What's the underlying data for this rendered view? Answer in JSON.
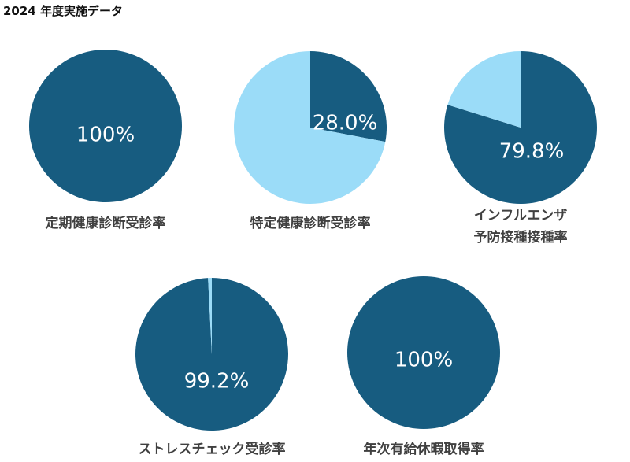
{
  "page_title": "2024 年度実施データ",
  "colors": {
    "achieved": "#175c80",
    "remaining": "#9bdcf8"
  },
  "chart_data": [
    {
      "type": "pie",
      "title": [
        "定期健康診断受診率"
      ],
      "value_label": "100%",
      "values": [
        100,
        0
      ]
    },
    {
      "type": "pie",
      "title": [
        "特定健康診断受診率"
      ],
      "value_label": "28.0%",
      "values": [
        28.0,
        72.0
      ]
    },
    {
      "type": "pie",
      "title": [
        "インフルエンザ",
        "予防接種接種率"
      ],
      "value_label": "79.8%",
      "values": [
        79.8,
        20.2
      ]
    },
    {
      "type": "pie",
      "title": [
        "ストレスチェック受診率"
      ],
      "value_label": "99.2%",
      "values": [
        99.2,
        0.8
      ]
    },
    {
      "type": "pie",
      "title": [
        "年次有給休暇取得率"
      ],
      "value_label": "100%",
      "values": [
        100,
        0
      ]
    }
  ]
}
